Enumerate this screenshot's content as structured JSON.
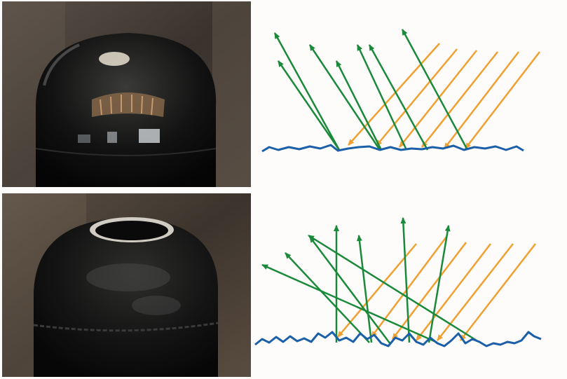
{
  "panels": [
    {
      "id": "top",
      "photo": "glossy-trash-bin-dome",
      "diagram": "specular-reflection-smooth-surface"
    },
    {
      "id": "bottom",
      "photo": "matte-trash-bin-dome",
      "diagram": "diffuse-reflection-rough-surface"
    }
  ],
  "colors": {
    "incident": "#f0a030",
    "reflected": "#1a8a3a",
    "surface": "#1a5fa8"
  }
}
